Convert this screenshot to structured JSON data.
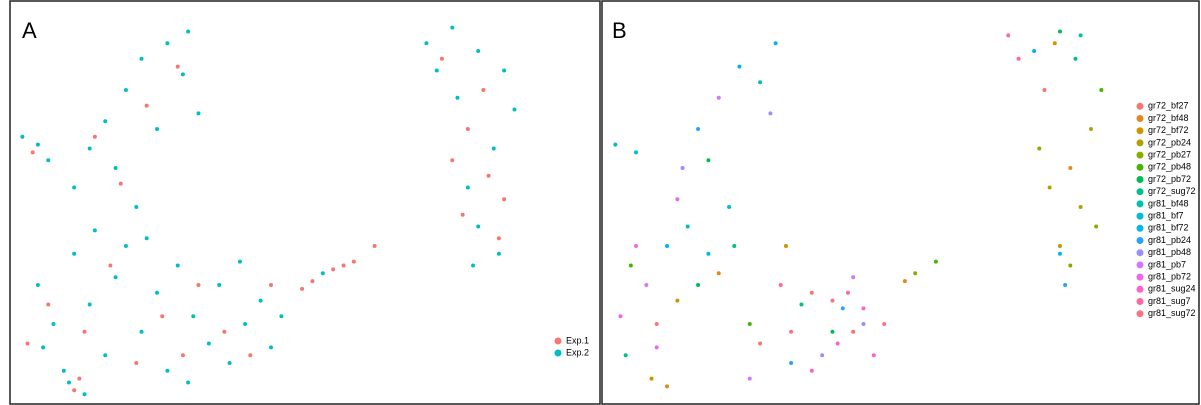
{
  "chart_data": [
    {
      "type": "scatter",
      "title": "A",
      "xlim": [
        0,
        100
      ],
      "ylim": [
        0,
        100
      ],
      "legend": "right",
      "series": [
        {
          "name": "Exp.1",
          "color": "#F8766D",
          "x": [
            7,
            14,
            19,
            24,
            29,
            36,
            41,
            46,
            3,
            33,
            50,
            16,
            26,
            32,
            21,
            83,
            88,
            92,
            87,
            95,
            91,
            85,
            94,
            58,
            62,
            64,
            66,
            70,
            56,
            12,
            13,
            4
          ],
          "y": [
            25,
            18,
            35,
            10,
            22,
            30,
            18,
            12,
            15,
            12,
            30,
            68,
            76,
            86,
            56,
            88,
            70,
            58,
            48,
            52,
            80,
            62,
            42,
            31,
            34,
            35,
            36,
            40,
            29,
            3,
            6,
            64
          ]
        },
        {
          "name": "Exp.2",
          "color": "#00BFC4",
          "x": [
            5,
            8,
            12,
            15,
            18,
            20,
            22,
            25,
            28,
            30,
            32,
            35,
            38,
            40,
            42,
            45,
            48,
            50,
            10,
            26,
            34,
            44,
            16,
            6,
            52,
            12,
            15,
            18,
            22,
            25,
            30,
            33,
            28,
            36,
            20,
            34,
            24,
            2,
            5,
            7,
            80,
            85,
            90,
            95,
            97,
            93,
            88,
            90,
            94,
            86,
            82,
            89,
            11,
            14,
            60
          ],
          "y": [
            30,
            20,
            38,
            25,
            12,
            32,
            40,
            18,
            28,
            8,
            35,
            22,
            15,
            30,
            10,
            20,
            26,
            14,
            8,
            42,
            5,
            36,
            44,
            14,
            22,
            55,
            65,
            72,
            80,
            88,
            92,
            84,
            70,
            74,
            60,
            95,
            50,
            68,
            66,
            62,
            92,
            96,
            90,
            85,
            75,
            65,
            55,
            45,
            38,
            78,
            85,
            35,
            5,
            2,
            33
          ]
        }
      ]
    },
    {
      "type": "scatter",
      "title": "B",
      "xlim": [
        0,
        100
      ],
      "ylim": [
        0,
        100
      ],
      "legend": "right",
      "series": [
        {
          "name": "gr72_bf27",
          "color": "#F8766D",
          "x": [
            10,
            30,
            85,
            40
          ],
          "y": [
            20,
            15,
            80,
            28
          ]
        },
        {
          "name": "gr72_bf48",
          "color": "#E7851E",
          "x": [
            12,
            22,
            58,
            90
          ],
          "y": [
            4,
            33,
            31,
            60
          ]
        },
        {
          "name": "gr72_bf72",
          "color": "#D09400",
          "x": [
            14,
            35,
            87,
            9
          ],
          "y": [
            26,
            40,
            92,
            6
          ]
        },
        {
          "name": "gr72_pb24",
          "color": "#B2A100",
          "x": [
            88,
            92,
            86,
            94
          ],
          "y": [
            40,
            50,
            55,
            70
          ]
        },
        {
          "name": "gr72_pb27",
          "color": "#89AC00",
          "x": [
            90,
            95,
            84,
            60
          ],
          "y": [
            35,
            45,
            65,
            33
          ]
        },
        {
          "name": "gr72_pb48",
          "color": "#45B500",
          "x": [
            5,
            28,
            96,
            64
          ],
          "y": [
            35,
            20,
            80,
            36
          ]
        },
        {
          "name": "gr72_pb72",
          "color": "#00BC51",
          "x": [
            18,
            44,
            88,
            20
          ],
          "y": [
            30,
            18,
            95,
            62
          ]
        },
        {
          "name": "gr72_sug72",
          "color": "#00C087",
          "x": [
            25,
            38,
            91,
            4
          ],
          "y": [
            40,
            25,
            88,
            12
          ]
        },
        {
          "name": "gr81_bf48",
          "color": "#00C0B2",
          "x": [
            16,
            30,
            92,
            2
          ],
          "y": [
            45,
            82,
            94,
            66
          ]
        },
        {
          "name": "gr81_bf7",
          "color": "#00BCD6",
          "x": [
            20,
            24,
            88,
            6
          ],
          "y": [
            38,
            50,
            38,
            64
          ]
        },
        {
          "name": "gr81_bf72",
          "color": "#00B3F2",
          "x": [
            26,
            12,
            83,
            33
          ],
          "y": [
            86,
            40,
            90,
            92
          ]
        },
        {
          "name": "gr81_pb24",
          "color": "#29A3FF",
          "x": [
            18,
            36,
            89,
            46
          ],
          "y": [
            70,
            10,
            30,
            24
          ]
        },
        {
          "name": "gr81_pb48",
          "color": "#9C8DFF",
          "x": [
            15,
            32,
            50,
            42
          ],
          "y": [
            60,
            74,
            20,
            12
          ]
        },
        {
          "name": "gr81_pb7",
          "color": "#D277FF",
          "x": [
            8,
            22,
            28,
            48
          ],
          "y": [
            30,
            78,
            6,
            32
          ]
        },
        {
          "name": "gr81_pb72",
          "color": "#F166E8",
          "x": [
            3,
            6,
            10,
            14
          ],
          "y": [
            22,
            40,
            14,
            52
          ]
        },
        {
          "name": "gr81_sug24",
          "color": "#FF61C7",
          "x": [
            45,
            50,
            52,
            40
          ],
          "y": [
            15,
            24,
            12,
            8
          ]
        },
        {
          "name": "gr81_sug7",
          "color": "#FF689E",
          "x": [
            78,
            80,
            34,
            47
          ],
          "y": [
            94,
            88,
            30,
            28
          ]
        },
        {
          "name": "gr81_sug72",
          "color": "#FC717F",
          "x": [
            48,
            54,
            44,
            36
          ],
          "y": [
            18,
            20,
            26,
            18
          ]
        }
      ]
    }
  ]
}
